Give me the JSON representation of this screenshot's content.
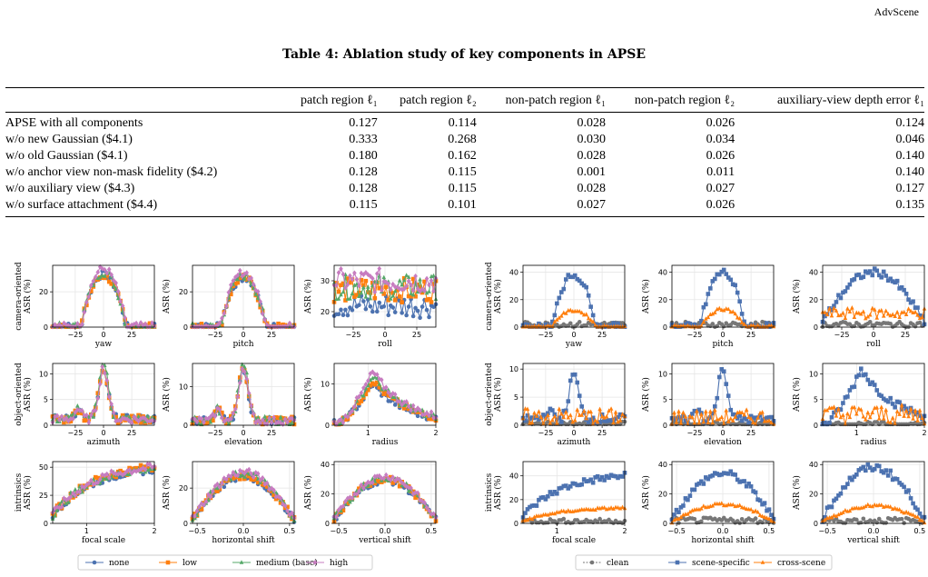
{
  "header": {
    "venue": "AdvScene"
  },
  "table": {
    "caption": "Table 4: Ablation study of key components in APSE",
    "columns": [
      "",
      "patch region ℓ₁",
      "patch region ℓ₂",
      "non-patch region ℓ₁",
      "non-patch region ℓ₂",
      "auxiliary-view depth error ℓ₁"
    ],
    "rows": [
      [
        "APSE with all components",
        "0.127",
        "0.114",
        "0.028",
        "0.026",
        "0.124"
      ],
      [
        "w/o new Gaussian ($4.1)",
        "0.333",
        "0.268",
        "0.030",
        "0.034",
        "0.046"
      ],
      [
        "w/o old Gaussian ($4.1)",
        "0.180",
        "0.162",
        "0.028",
        "0.026",
        "0.140"
      ],
      [
        "w/o anchor view non-mask fidelity ($4.2)",
        "0.128",
        "0.115",
        "0.001",
        "0.011",
        "0.140"
      ],
      [
        "w/o auxiliary view ($4.3)",
        "0.128",
        "0.115",
        "0.028",
        "0.027",
        "0.127"
      ],
      [
        "w/o surface attachment ($4.4)",
        "0.115",
        "0.101",
        "0.027",
        "0.026",
        "0.135"
      ]
    ]
  },
  "figure": {
    "row_labels": [
      [
        "camera-oriented",
        "ASR (%)"
      ],
      [
        "object-oriented",
        "ASR (%)"
      ],
      [
        "intrinsics",
        "ASR (%)"
      ]
    ],
    "ylabel": "ASR (%)",
    "legend_left": [
      {
        "name": "none",
        "color": "#4c72b0",
        "marker": "circle"
      },
      {
        "name": "low",
        "color": "#ff7f0e",
        "marker": "square"
      },
      {
        "name": "medium (base)",
        "color": "#55a868",
        "marker": "triangle"
      },
      {
        "name": "high",
        "color": "#c77cc0",
        "marker": "diamond"
      }
    ],
    "legend_right": [
      {
        "name": "clean",
        "color": "#777777",
        "marker": "circle"
      },
      {
        "name": "scene-specific",
        "color": "#4c72b0",
        "marker": "square"
      },
      {
        "name": "cross-scene",
        "color": "#ff7f0e",
        "marker": "triangle"
      }
    ]
  },
  "chart_data": [
    {
      "type": "line",
      "panel": "left-yaw",
      "xlabel": "yaw",
      "x_range": [
        -45,
        45
      ],
      "xticks": [
        -25,
        0,
        25
      ],
      "ylim": [
        0,
        35
      ],
      "yticks": [
        0,
        20
      ],
      "shape": "bump",
      "series": [
        {
          "name": "none",
          "peak": 30
        },
        {
          "name": "low",
          "peak": 29
        },
        {
          "name": "medium (base)",
          "peak": 31
        },
        {
          "name": "high",
          "peak": 33
        }
      ]
    },
    {
      "type": "line",
      "panel": "left-pitch",
      "xlabel": "pitch",
      "x_range": [
        -45,
        45
      ],
      "xticks": [
        -25,
        0,
        25
      ],
      "ylim": [
        0,
        35
      ],
      "yticks": [
        0,
        20
      ],
      "shape": "bump",
      "series": [
        {
          "name": "none",
          "peak": 28
        },
        {
          "name": "low",
          "peak": 28
        },
        {
          "name": "medium (base)",
          "peak": 29
        },
        {
          "name": "high",
          "peak": 31
        }
      ]
    },
    {
      "type": "line",
      "panel": "left-roll",
      "xlabel": "roll",
      "x_range": [
        -40,
        40
      ],
      "xticks": [
        -25,
        0,
        25
      ],
      "ylim": [
        15,
        35
      ],
      "yticks": [
        20,
        30
      ],
      "shape": "flat",
      "series": [
        {
          "name": "none",
          "level": 22
        },
        {
          "name": "low",
          "level": 27
        },
        {
          "name": "medium (base)",
          "level": 28
        },
        {
          "name": "high",
          "level": 30
        }
      ]
    },
    {
      "type": "line",
      "panel": "left-azimuth",
      "xlabel": "azimuth",
      "x_range": [
        -45,
        45
      ],
      "xticks": [
        -25,
        0,
        25
      ],
      "ylim": [
        0,
        12
      ],
      "yticks": [
        0,
        5,
        10
      ],
      "shape": "spike",
      "series": [
        {
          "name": "none",
          "peak": 9
        },
        {
          "name": "low",
          "peak": 10
        },
        {
          "name": "medium (base)",
          "peak": 11
        },
        {
          "name": "high",
          "peak": 10
        }
      ]
    },
    {
      "type": "line",
      "panel": "left-elevation",
      "xlabel": "elevation",
      "x_range": [
        -45,
        45
      ],
      "xticks": [
        -25,
        0,
        25
      ],
      "ylim": [
        0,
        16
      ],
      "yticks": [
        0,
        10
      ],
      "shape": "spike",
      "series": [
        {
          "name": "none",
          "peak": 13
        },
        {
          "name": "low",
          "peak": 14
        },
        {
          "name": "medium (base)",
          "peak": 15
        },
        {
          "name": "high",
          "peak": 14
        }
      ]
    },
    {
      "type": "line",
      "panel": "left-radius",
      "xlabel": "radius",
      "x_range": [
        0.5,
        2.0
      ],
      "xticks": [
        1,
        2
      ],
      "ylim": [
        0,
        15
      ],
      "yticks": [
        0,
        10
      ],
      "shape": "skew",
      "series": [
        {
          "name": "none",
          "peak": 10
        },
        {
          "name": "low",
          "peak": 11
        },
        {
          "name": "medium (base)",
          "peak": 12
        },
        {
          "name": "high",
          "peak": 13
        }
      ]
    },
    {
      "type": "line",
      "panel": "left-focal",
      "xlabel": "focal scale",
      "x_range": [
        0.5,
        2.0
      ],
      "xticks": [
        1,
        2
      ],
      "ylim": [
        0,
        55
      ],
      "yticks": [
        0,
        25,
        50
      ],
      "shape": "rise",
      "series": [
        {
          "name": "none",
          "end": 48
        },
        {
          "name": "low",
          "end": 50
        },
        {
          "name": "medium (base)",
          "end": 49
        },
        {
          "name": "high",
          "end": 50
        }
      ]
    },
    {
      "type": "line",
      "panel": "left-hshift",
      "xlabel": "horizontal shift",
      "x_range": [
        -0.55,
        0.55
      ],
      "xticks": [
        -0.5,
        0.0,
        0.5
      ],
      "ylim": [
        0,
        35
      ],
      "yticks": [
        0,
        20
      ],
      "shape": "arch",
      "series": [
        {
          "name": "none",
          "peak": 26
        },
        {
          "name": "low",
          "peak": 27
        },
        {
          "name": "medium (base)",
          "peak": 28
        },
        {
          "name": "high",
          "peak": 29
        }
      ]
    },
    {
      "type": "line",
      "panel": "left-vshift",
      "xlabel": "vertical shift",
      "x_range": [
        -0.55,
        0.55
      ],
      "xticks": [
        -0.5,
        0.0,
        0.5
      ],
      "ylim": [
        0,
        42
      ],
      "yticks": [
        0,
        20,
        40
      ],
      "shape": "arch",
      "series": [
        {
          "name": "none",
          "peak": 29
        },
        {
          "name": "low",
          "peak": 30
        },
        {
          "name": "medium (base)",
          "peak": 31
        },
        {
          "name": "high",
          "peak": 32
        }
      ]
    },
    {
      "type": "line",
      "panel": "right-yaw",
      "xlabel": "yaw",
      "x_range": [
        -45,
        45
      ],
      "xticks": [
        -25,
        0,
        25
      ],
      "ylim": [
        0,
        45
      ],
      "yticks": [
        0,
        20,
        40
      ],
      "series": [
        {
          "name": "clean",
          "shape": "low",
          "level": 2
        },
        {
          "name": "scene-specific",
          "shape": "bump",
          "peak": 38
        },
        {
          "name": "cross-scene",
          "shape": "bump",
          "peak": 12
        }
      ]
    },
    {
      "type": "line",
      "panel": "right-pitch",
      "xlabel": "pitch",
      "x_range": [
        -45,
        45
      ],
      "xticks": [
        -25,
        0,
        25
      ],
      "ylim": [
        0,
        45
      ],
      "yticks": [
        0,
        20,
        40
      ],
      "series": [
        {
          "name": "clean",
          "shape": "low",
          "level": 2
        },
        {
          "name": "scene-specific",
          "shape": "bump",
          "peak": 40
        },
        {
          "name": "cross-scene",
          "shape": "bump",
          "peak": 13
        }
      ]
    },
    {
      "type": "line",
      "panel": "right-roll",
      "xlabel": "roll",
      "x_range": [
        -40,
        40
      ],
      "xticks": [
        -25,
        0,
        25
      ],
      "ylim": [
        0,
        45
      ],
      "yticks": [
        0,
        20,
        40
      ],
      "series": [
        {
          "name": "clean",
          "shape": "low",
          "level": 2
        },
        {
          "name": "scene-specific",
          "shape": "arch",
          "peak": 40
        },
        {
          "name": "cross-scene",
          "shape": "flat",
          "level": 10
        }
      ]
    },
    {
      "type": "line",
      "panel": "right-azimuth",
      "xlabel": "azimuth",
      "x_range": [
        -45,
        45
      ],
      "xticks": [
        -25,
        0,
        25
      ],
      "ylim": [
        0,
        11
      ],
      "yticks": [
        0,
        5,
        10
      ],
      "series": [
        {
          "name": "clean",
          "shape": "low",
          "level": 0.2
        },
        {
          "name": "scene-specific",
          "shape": "spike",
          "peak": 8
        },
        {
          "name": "cross-scene",
          "shape": "low",
          "level": 1.5
        }
      ]
    },
    {
      "type": "line",
      "panel": "right-elevation",
      "xlabel": "elevation",
      "x_range": [
        -45,
        45
      ],
      "xticks": [
        -25,
        0,
        25
      ],
      "ylim": [
        0,
        12
      ],
      "yticks": [
        0,
        5,
        10
      ],
      "series": [
        {
          "name": "clean",
          "shape": "low",
          "level": 0.2
        },
        {
          "name": "scene-specific",
          "shape": "spike",
          "peak": 10
        },
        {
          "name": "cross-scene",
          "shape": "low",
          "level": 1.5
        }
      ]
    },
    {
      "type": "line",
      "panel": "right-radius",
      "xlabel": "radius",
      "x_range": [
        0.5,
        2.0
      ],
      "xticks": [
        1,
        2
      ],
      "ylim": [
        0,
        12
      ],
      "yticks": [
        0,
        5,
        10
      ],
      "series": [
        {
          "name": "clean",
          "shape": "low",
          "level": 0.2
        },
        {
          "name": "scene-specific",
          "shape": "skew",
          "peak": 11
        },
        {
          "name": "cross-scene",
          "shape": "low",
          "level": 2
        }
      ]
    },
    {
      "type": "line",
      "panel": "right-focal",
      "xlabel": "focal scale",
      "x_range": [
        0.5,
        2.0
      ],
      "xticks": [
        1,
        2
      ],
      "ylim": [
        0,
        52
      ],
      "yticks": [
        0,
        20,
        40
      ],
      "series": [
        {
          "name": "clean",
          "shape": "low",
          "level": 2
        },
        {
          "name": "scene-specific",
          "shape": "rise",
          "end": 40
        },
        {
          "name": "cross-scene",
          "shape": "rise",
          "end": 13
        }
      ]
    },
    {
      "type": "line",
      "panel": "right-hshift",
      "xlabel": "horizontal shift",
      "x_range": [
        -0.55,
        0.55
      ],
      "xticks": [
        -0.5,
        0.0,
        0.5
      ],
      "ylim": [
        0,
        42
      ],
      "yticks": [
        0,
        20,
        40
      ],
      "series": [
        {
          "name": "clean",
          "shape": "low",
          "level": 2
        },
        {
          "name": "scene-specific",
          "shape": "arch",
          "peak": 34
        },
        {
          "name": "cross-scene",
          "shape": "arch",
          "peak": 13
        }
      ]
    },
    {
      "type": "line",
      "panel": "right-vshift",
      "xlabel": "vertical shift",
      "x_range": [
        -0.55,
        0.55
      ],
      "xticks": [
        -0.5,
        0.0,
        0.5
      ],
      "ylim": [
        0,
        42
      ],
      "yticks": [
        0,
        20,
        40
      ],
      "series": [
        {
          "name": "clean",
          "shape": "low",
          "level": 2
        },
        {
          "name": "scene-specific",
          "shape": "arch",
          "peak": 38
        },
        {
          "name": "cross-scene",
          "shape": "arch",
          "peak": 12
        }
      ]
    }
  ]
}
